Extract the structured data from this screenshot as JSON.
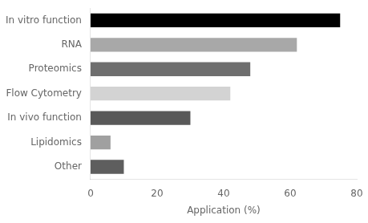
{
  "chart_data": {
    "type": "bar",
    "orientation": "horizontal",
    "categories": [
      "In vitro function",
      "RNA",
      "Proteomics",
      "Flow Cytometry",
      "In vivo function",
      "Lipidomics",
      "Other"
    ],
    "values": [
      75,
      62,
      48,
      42,
      30,
      6,
      10
    ],
    "colors": [
      "#000000",
      "#a8a8a8",
      "#6e6e6e",
      "#d3d3d3",
      "#595959",
      "#a0a0a0",
      "#5e5e5e"
    ],
    "xlabel": "Application (%)",
    "xlim": [
      0,
      80
    ],
    "xticks": [
      0,
      20,
      40,
      60,
      80
    ],
    "grid": false
  }
}
